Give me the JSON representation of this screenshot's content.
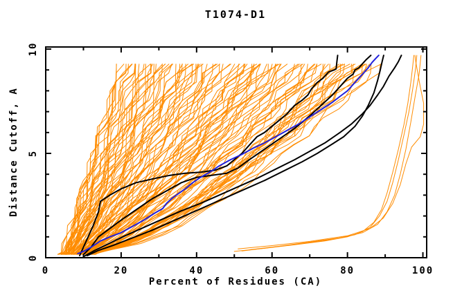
{
  "title": "T1074-D1",
  "colors": {
    "background": "#ffffff",
    "axis": "#000000",
    "orange": "#ff8c00",
    "black": "#000000",
    "blue": "#2222dd"
  },
  "chart_data": {
    "type": "line",
    "title": "T1074-D1",
    "xlabel": "Percent of Residues (CA)",
    "ylabel": "Distance Cutoff, A",
    "xlim": [
      0,
      101
    ],
    "ylim": [
      0,
      10.1
    ],
    "x_major_ticks": [
      0,
      20,
      40,
      60,
      80,
      100
    ],
    "x_minor_ticks": [
      10,
      30,
      50,
      70,
      90
    ],
    "y_major_ticks": [
      0,
      5,
      10
    ],
    "y_minor_ticks": [
      1,
      2,
      3,
      4,
      6,
      7,
      8,
      9
    ],
    "grid": false,
    "legend": false,
    "description": "Cumulative percent of CA residues (x) fitting under each distance cutoff in Angstroms (y). Dense orange ensemble of predicted models, four highlighted black model curves, one highlighted blue model curve, and a small bundle of poor-model orange outliers along the lower right.",
    "series": [
      {
        "name": "highlighted-model-black-1",
        "color": "black",
        "width": 2,
        "points": [
          [
            9,
            0.1
          ],
          [
            11,
            0.9
          ],
          [
            12.5,
            1.5
          ],
          [
            14,
            2.2
          ],
          [
            14.5,
            2.7
          ],
          [
            17,
            3.0
          ],
          [
            20,
            3.3
          ],
          [
            24,
            3.6
          ],
          [
            29,
            3.8
          ],
          [
            33,
            3.95
          ],
          [
            37,
            4.05
          ],
          [
            41,
            4.1
          ],
          [
            45,
            4.2
          ],
          [
            48,
            4.4
          ],
          [
            50,
            4.7
          ],
          [
            52,
            5.0
          ],
          [
            54,
            5.4
          ],
          [
            56,
            5.8
          ],
          [
            58,
            6.0
          ],
          [
            60,
            6.3
          ],
          [
            62,
            6.6
          ],
          [
            64,
            6.9
          ],
          [
            66,
            7.3
          ],
          [
            68,
            7.55
          ],
          [
            69.5,
            7.8
          ],
          [
            70.5,
            8.1
          ],
          [
            72,
            8.4
          ],
          [
            73.5,
            8.6
          ],
          [
            75,
            8.9
          ],
          [
            76.5,
            9.0
          ],
          [
            77,
            9.05
          ],
          [
            77.2,
            9.4
          ],
          [
            77.4,
            9.7
          ]
        ]
      },
      {
        "name": "highlighted-model-black-2",
        "color": "black",
        "width": 2,
        "points": [
          [
            10,
            0.15
          ],
          [
            12,
            0.5
          ],
          [
            14,
            1.0
          ],
          [
            17,
            1.4
          ],
          [
            20,
            1.8
          ],
          [
            24,
            2.3
          ],
          [
            28,
            2.8
          ],
          [
            32,
            3.2
          ],
          [
            36,
            3.6
          ],
          [
            40,
            3.85
          ],
          [
            44,
            3.95
          ],
          [
            48,
            4.05
          ],
          [
            51,
            4.3
          ],
          [
            54,
            4.7
          ],
          [
            58,
            5.2
          ],
          [
            62,
            5.7
          ],
          [
            66,
            6.2
          ],
          [
            70,
            6.8
          ],
          [
            73,
            7.3
          ],
          [
            76,
            7.8
          ],
          [
            78,
            8.2
          ],
          [
            80,
            8.6
          ],
          [
            81.5,
            8.8
          ],
          [
            82,
            9.0
          ],
          [
            83,
            9.1
          ],
          [
            84,
            9.3
          ],
          [
            85,
            9.5
          ],
          [
            86.2,
            9.7
          ]
        ]
      },
      {
        "name": "highlighted-model-black-3",
        "color": "black",
        "width": 2,
        "points": [
          [
            10,
            0.05
          ],
          [
            13,
            0.35
          ],
          [
            17,
            0.7
          ],
          [
            21,
            1.05
          ],
          [
            26,
            1.45
          ],
          [
            31,
            1.85
          ],
          [
            36,
            2.25
          ],
          [
            41,
            2.6
          ],
          [
            46,
            3.0
          ],
          [
            51,
            3.4
          ],
          [
            56,
            3.8
          ],
          [
            61,
            4.25
          ],
          [
            66,
            4.7
          ],
          [
            70,
            5.1
          ],
          [
            74,
            5.5
          ],
          [
            78,
            6.0
          ],
          [
            81,
            6.4
          ],
          [
            84,
            6.9
          ],
          [
            86,
            7.3
          ],
          [
            88,
            7.8
          ],
          [
            89.5,
            8.2
          ],
          [
            91,
            8.7
          ],
          [
            92.5,
            9.1
          ],
          [
            93.5,
            9.4
          ],
          [
            94.3,
            9.7
          ]
        ]
      },
      {
        "name": "highlighted-model-black-4",
        "color": "black",
        "width": 2,
        "points": [
          [
            11,
            0.1
          ],
          [
            14,
            0.35
          ],
          [
            18,
            0.6
          ],
          [
            23,
            0.95
          ],
          [
            28,
            1.3
          ],
          [
            33,
            1.7
          ],
          [
            38,
            2.1
          ],
          [
            43,
            2.5
          ],
          [
            48,
            2.9
          ],
          [
            53,
            3.3
          ],
          [
            58,
            3.7
          ],
          [
            63,
            4.15
          ],
          [
            68,
            4.6
          ],
          [
            72,
            5.0
          ],
          [
            76,
            5.45
          ],
          [
            79,
            5.8
          ],
          [
            82,
            6.3
          ],
          [
            84,
            6.8
          ],
          [
            85.5,
            7.3
          ],
          [
            87,
            7.9
          ],
          [
            88,
            8.5
          ],
          [
            88.7,
            9.0
          ],
          [
            89.2,
            9.4
          ],
          [
            89.6,
            9.7
          ]
        ]
      },
      {
        "name": "highlighted-model-blue",
        "color": "blue",
        "width": 2,
        "points": [
          [
            8.5,
            0.2
          ],
          [
            10,
            0.3
          ],
          [
            12,
            0.5
          ],
          [
            14.5,
            0.8
          ],
          [
            17,
            1.0
          ],
          [
            20,
            1.2
          ],
          [
            23,
            1.5
          ],
          [
            26,
            1.8
          ],
          [
            29,
            2.15
          ],
          [
            31,
            2.35
          ],
          [
            32,
            2.6
          ],
          [
            33.5,
            2.85
          ],
          [
            35,
            3.05
          ],
          [
            37,
            3.3
          ],
          [
            39,
            3.6
          ],
          [
            41,
            3.85
          ],
          [
            43.5,
            4.1
          ],
          [
            46,
            4.4
          ],
          [
            49,
            4.7
          ],
          [
            52,
            4.95
          ],
          [
            55,
            5.25
          ],
          [
            58,
            5.5
          ],
          [
            61,
            5.8
          ],
          [
            64,
            6.1
          ],
          [
            67,
            6.4
          ],
          [
            70,
            6.75
          ],
          [
            73,
            7.1
          ],
          [
            76,
            7.45
          ],
          [
            78.5,
            7.8
          ],
          [
            80,
            8.0
          ],
          [
            82,
            8.4
          ],
          [
            84,
            8.8
          ],
          [
            85.5,
            9.1
          ],
          [
            86.5,
            9.35
          ],
          [
            87.5,
            9.55
          ],
          [
            88.3,
            9.7
          ]
        ]
      },
      {
        "name": "outlier-model-orange-1",
        "color": "orange",
        "width": 1,
        "points": [
          [
            50,
            0.3
          ],
          [
            58,
            0.45
          ],
          [
            66,
            0.62
          ],
          [
            74,
            0.8
          ],
          [
            80,
            1.0
          ],
          [
            84,
            1.25
          ],
          [
            87,
            1.7
          ],
          [
            89,
            2.3
          ],
          [
            90.5,
            3.1
          ],
          [
            92,
            4.1
          ],
          [
            93.5,
            5.2
          ],
          [
            95,
            6.4
          ],
          [
            96,
            7.4
          ],
          [
            96.8,
            8.4
          ],
          [
            97.3,
            9.2
          ],
          [
            97.6,
            9.7
          ]
        ]
      },
      {
        "name": "outlier-model-orange-2",
        "color": "orange",
        "width": 1,
        "points": [
          [
            52,
            0.32
          ],
          [
            60,
            0.5
          ],
          [
            68,
            0.68
          ],
          [
            76,
            0.88
          ],
          [
            82,
            1.1
          ],
          [
            86,
            1.45
          ],
          [
            88.5,
            2.0
          ],
          [
            90.5,
            2.7
          ],
          [
            92,
            3.6
          ],
          [
            93.5,
            4.7
          ],
          [
            95,
            5.9
          ],
          [
            96.3,
            7.0
          ],
          [
            97.3,
            8.1
          ],
          [
            98,
            9.0
          ],
          [
            98.4,
            9.7
          ]
        ]
      },
      {
        "name": "outlier-model-orange-3",
        "color": "orange",
        "width": 1,
        "points": [
          [
            54,
            0.38
          ],
          [
            62,
            0.55
          ],
          [
            70,
            0.75
          ],
          [
            78,
            0.95
          ],
          [
            84,
            1.2
          ],
          [
            88,
            1.6
          ],
          [
            90.5,
            2.2
          ],
          [
            92.5,
            3.0
          ],
          [
            94,
            4.0
          ],
          [
            95.5,
            5.2
          ],
          [
            96.8,
            6.5
          ],
          [
            98,
            7.8
          ],
          [
            99,
            8.8
          ],
          [
            99.5,
            9.7
          ]
        ]
      },
      {
        "name": "outlier-model-orange-4",
        "color": "orange",
        "width": 1,
        "points": [
          [
            51,
            0.42
          ],
          [
            60,
            0.58
          ],
          [
            70,
            0.78
          ],
          [
            80,
            1.05
          ],
          [
            86,
            1.4
          ],
          [
            89.5,
            1.9
          ],
          [
            92,
            2.6
          ],
          [
            94,
            3.5
          ],
          [
            95.5,
            4.5
          ],
          [
            97,
            5.3
          ],
          [
            99.3,
            5.8
          ],
          [
            100.2,
            6.4
          ],
          [
            100.2,
            7.4
          ],
          [
            99.3,
            8.2
          ],
          [
            98.6,
            8.9
          ],
          [
            98.1,
            9.4
          ],
          [
            97.9,
            9.7
          ]
        ]
      }
    ],
    "ensemble": {
      "name": "server-model-ensemble-orange",
      "color": "orange",
      "width": 1,
      "count": 112,
      "seed": 9,
      "x_start_range": [
        4.5,
        14
      ],
      "x_top_range": [
        20.5,
        91
      ],
      "y_start": 0.25,
      "y_end": 9.7,
      "y_step": 0.43,
      "shape_exponent_range": [
        1.05,
        0.68
      ],
      "jitter": 1.6,
      "fringe_fraction": 0.07
    }
  }
}
